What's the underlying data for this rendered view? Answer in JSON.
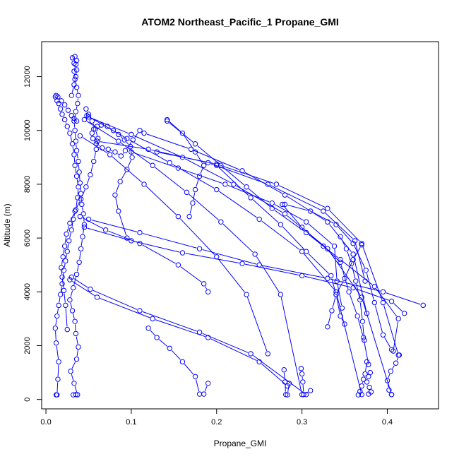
{
  "chart_data": {
    "type": "line",
    "title": "ATOM2 Northeast_Pacific_1 Propane_GMI",
    "xlabel": "Propane_GMI",
    "ylabel": "Altitude (m)",
    "xlim": [
      -0.005,
      0.46
    ],
    "ylim": [
      -350,
      13300
    ],
    "xticks": [
      0.0,
      0.1,
      0.2,
      0.3,
      0.4
    ],
    "xtick_labels": [
      "0.0",
      "0.1",
      "0.2",
      "0.3",
      "0.4"
    ],
    "yticks": [
      0,
      2000,
      4000,
      6000,
      8000,
      10000,
      12000
    ],
    "ytick_labels": [
      "0",
      "2000",
      "4000",
      "6000",
      "8000",
      "10000",
      "12000"
    ],
    "grid": false,
    "legend": "none",
    "series_color": "#0000ff",
    "marker": "open-circle",
    "series": [
      {
        "x": [
          0.032,
          0.035,
          0.037,
          0.033,
          0.029,
          0.036,
          0.038,
          0.035,
          0.034,
          0.031,
          0.028,
          0.032,
          0.036,
          0.039,
          0.041,
          0.043,
          0.045,
          0.044,
          0.042,
          0.041,
          0.04,
          0.039,
          0.038,
          0.036,
          0.035,
          0.034,
          0.033,
          0.035,
          0.037,
          0.038,
          0.036,
          0.034,
          0.033,
          0.035,
          0.036,
          0.034,
          0.031,
          0.033,
          0.036,
          0.035,
          0.033,
          0.03
        ],
        "y": [
          170,
          180,
          175,
          600,
          1050,
          1500,
          1950,
          2450,
          2900,
          3300,
          3700,
          4150,
          4650,
          5100,
          5600,
          6050,
          6500,
          6900,
          7250,
          7650,
          8050,
          8450,
          8850,
          9250,
          9600,
          10000,
          10350,
          10700,
          11000,
          11300,
          11600,
          11900,
          12200,
          12450,
          12600,
          12750,
          12700,
          12500,
          12250,
          12000,
          11700,
          11300
        ]
      },
      {
        "x": [
          0.012,
          0.013,
          0.014,
          0.015,
          0.012,
          0.011,
          0.013,
          0.015,
          0.017,
          0.019,
          0.021,
          0.023,
          0.025,
          0.027,
          0.03,
          0.032,
          0.035,
          0.037,
          0.038,
          0.036,
          0.034,
          0.033,
          0.031,
          0.028,
          0.025,
          0.022,
          0.019,
          0.017,
          0.015,
          0.013,
          0.011,
          0.012,
          0.014,
          0.018,
          0.022,
          0.026,
          0.03,
          0.033,
          0.036
        ],
        "y": [
          170,
          170,
          750,
          1400,
          2100,
          2650,
          3100,
          3500,
          3900,
          4300,
          4800,
          5150,
          5500,
          5900,
          6300,
          6700,
          7050,
          7500,
          7900,
          8300,
          8700,
          9100,
          9500,
          9900,
          10150,
          10400,
          10600,
          10800,
          11000,
          11100,
          11250,
          11300,
          11250,
          11100,
          10950,
          10750,
          10550,
          10450,
          10350
        ]
      },
      {
        "x": [
          0.025,
          0.023,
          0.021,
          0.019,
          0.018,
          0.02,
          0.022,
          0.024,
          0.028,
          0.034,
          0.041,
          0.047,
          0.052,
          0.056,
          0.059,
          0.061,
          0.058,
          0.054,
          0.05,
          0.047
        ],
        "y": [
          2600,
          3500,
          4050,
          4550,
          4900,
          5300,
          5700,
          6150,
          6550,
          7000,
          7450,
          7900,
          8350,
          8850,
          9300,
          9700,
          10050,
          10350,
          10600,
          10800
        ]
      },
      {
        "x": [
          0.095,
          0.085,
          0.081,
          0.087,
          0.095,
          0.101,
          0.099,
          0.092,
          0.085,
          0.079,
          0.072,
          0.065,
          0.06,
          0.056,
          0.054,
          0.055,
          0.059,
          0.066,
          0.073,
          0.081,
          0.088,
          0.093,
          0.102,
          0.11
        ],
        "y": [
          6000,
          7000,
          7600,
          8100,
          8550,
          9000,
          9400,
          9650,
          9850,
          10000,
          10150,
          10200,
          10150,
          10050,
          9900,
          9700,
          9500,
          9350,
          9300,
          9200,
          9050,
          9250,
          9650,
          10000
        ]
      },
      {
        "x": [
          0.03,
          0.052,
          0.11,
          0.18,
          0.24,
          0.305
        ],
        "y": [
          4550,
          4100,
          3300,
          2500,
          1700,
          180
        ]
      },
      {
        "x": [
          0.028,
          0.06,
          0.125,
          0.19,
          0.25,
          0.283
        ],
        "y": [
          4450,
          3800,
          3000,
          2300,
          1400,
          500
        ]
      },
      {
        "x": [
          0.045,
          0.1,
          0.16,
          0.23,
          0.3,
          0.36,
          0.405,
          0.42
        ],
        "y": [
          6400,
          5900,
          5450,
          5050,
          4600,
          4150,
          3650,
          3200
        ]
      },
      {
        "x": [
          0.05,
          0.11,
          0.18,
          0.25,
          0.33,
          0.395,
          0.442
        ],
        "y": [
          6700,
          6200,
          5600,
          5000,
          4500,
          4000,
          3500
        ]
      },
      {
        "x": [
          0.06,
          0.12,
          0.19,
          0.26,
          0.325,
          0.362,
          0.374
        ],
        "y": [
          9600,
          9300,
          8800,
          8000,
          7000,
          5900,
          4400
        ]
      },
      {
        "x": [
          0.13,
          0.2,
          0.27,
          0.33,
          0.37,
          0.395,
          0.413
        ],
        "y": [
          9200,
          8750,
          8000,
          7100,
          5800,
          3600,
          1650
        ]
      },
      {
        "x": [
          0.115,
          0.17,
          0.23,
          0.28,
          0.33,
          0.36,
          0.376
        ],
        "y": [
          9900,
          9300,
          8500,
          7600,
          6600,
          5400,
          3200
        ]
      },
      {
        "x": [
          0.142,
          0.16,
          0.175,
          0.185,
          0.18,
          0.175,
          0.172,
          0.168
        ],
        "y": [
          10400,
          9900,
          9200,
          8700,
          8300,
          7800,
          7300,
          6800
        ]
      },
      {
        "x": [
          0.142,
          0.175,
          0.205,
          0.235,
          0.265,
          0.305,
          0.345,
          0.385,
          0.413,
          0.407
        ],
        "y": [
          10350,
          9500,
          8700,
          7900,
          7100,
          6200,
          5200,
          4200,
          3000,
          1800
        ]
      },
      {
        "x": [
          0.1,
          0.155,
          0.21,
          0.265,
          0.305,
          0.338,
          0.341,
          0.347
        ],
        "y": [
          9200,
          8600,
          8000,
          7300,
          6600,
          5700,
          4400,
          3400
        ]
      },
      {
        "x": [
          0.2,
          0.24,
          0.275,
          0.305,
          0.334,
          0.34,
          0.345,
          0.35
        ],
        "y": [
          8700,
          7500,
          6500,
          5500,
          4600,
          3900,
          3100,
          2800
        ]
      },
      {
        "x": [
          0.28,
          0.31,
          0.34,
          0.36,
          0.375,
          0.385,
          0.395,
          0.405
        ],
        "y": [
          7250,
          7000,
          6500,
          5800,
          4800,
          3600,
          2400,
          1850
        ]
      },
      {
        "x": [
          0.277,
          0.3,
          0.325,
          0.345,
          0.355,
          0.365,
          0.372,
          0.378
        ],
        "y": [
          7250,
          6400,
          5700,
          5100,
          4000,
          3100,
          2300,
          1300
        ]
      },
      {
        "x": [
          0.37,
          0.36,
          0.35,
          0.34,
          0.335,
          0.33
        ],
        "y": [
          5750,
          5200,
          4500,
          3900,
          3300,
          2700
        ]
      },
      {
        "x": [
          0.345,
          0.352,
          0.358,
          0.363,
          0.368,
          0.371,
          0.373
        ],
        "y": [
          6050,
          5600,
          5050,
          4400,
          3700,
          2900,
          2200
        ]
      },
      {
        "x": [
          0.376,
          0.374,
          0.372,
          0.37,
          0.368,
          0.366
        ],
        "y": [
          1400,
          950,
          750,
          500,
          300,
          170
        ]
      },
      {
        "x": [
          0.38,
          0.378,
          0.376,
          0.379,
          0.381,
          0.378
        ],
        "y": [
          1000,
          850,
          650,
          450,
          280,
          200
        ]
      },
      {
        "x": [
          0.414,
          0.41,
          0.404,
          0.4,
          0.402,
          0.405
        ],
        "y": [
          1650,
          1350,
          1050,
          700,
          350,
          180
        ]
      },
      {
        "x": [
          0.299,
          0.3,
          0.301,
          0.302,
          0.31
        ],
        "y": [
          1150,
          950,
          650,
          180,
          330
        ]
      },
      {
        "x": [
          0.279,
          0.28,
          0.281,
          0.283,
          0.285
        ],
        "y": [
          1100,
          650,
          180,
          170,
          600
        ]
      },
      {
        "x": [
          0.12,
          0.13,
          0.145,
          0.16,
          0.175,
          0.18,
          0.185,
          0.19
        ],
        "y": [
          2650,
          2300,
          1900,
          1400,
          850,
          200,
          200,
          600
        ]
      },
      {
        "x": [
          0.04,
          0.07,
          0.11,
          0.155,
          0.185,
          0.19
        ],
        "y": [
          6800,
          6300,
          5800,
          5000,
          4300,
          4000
        ]
      },
      {
        "x": [
          0.04,
          0.075,
          0.115,
          0.155,
          0.2,
          0.235,
          0.26
        ],
        "y": [
          9800,
          9100,
          8000,
          6800,
          5300,
          3900,
          1700
        ]
      },
      {
        "x": [
          0.045,
          0.085,
          0.125,
          0.165,
          0.205,
          0.245,
          0.275,
          0.3
        ],
        "y": [
          10400,
          9600,
          8700,
          7700,
          6600,
          5400,
          3900,
          180
        ]
      },
      {
        "x": [
          0.048,
          0.095,
          0.145,
          0.2,
          0.25,
          0.3,
          0.34,
          0.37
        ],
        "y": [
          10550,
          9700,
          8800,
          7800,
          6700,
          5500,
          4000,
          180
        ]
      },
      {
        "x": [
          0.05,
          0.1,
          0.16,
          0.22,
          0.28,
          0.33,
          0.37,
          0.405
        ],
        "y": [
          10500,
          9850,
          9000,
          8000,
          6900,
          5600,
          3800,
          180
        ]
      }
    ]
  }
}
